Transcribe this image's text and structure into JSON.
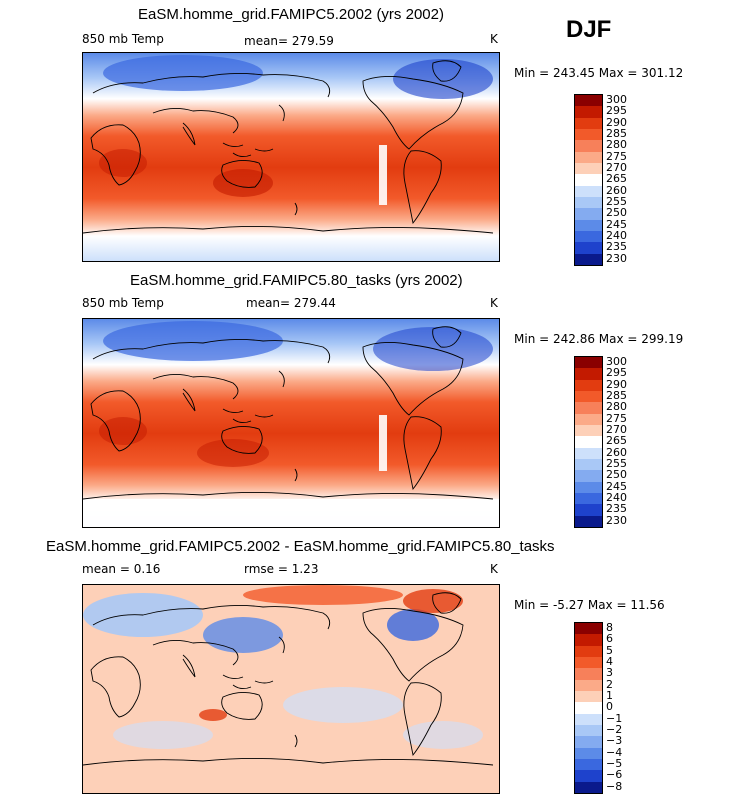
{
  "season": "DJF",
  "panels": [
    {
      "title": "EaSM.homme_grid.FAMIPC5.2002 (yrs 2002)",
      "variable": "850 mb Temp",
      "mean_text": "mean=  279.59",
      "unit": "K",
      "minmax": "Min = 243.45  Max = 301.12",
      "colorbar": {
        "labels": [
          "300",
          "295",
          "290",
          "285",
          "280",
          "275",
          "270",
          "265",
          "260",
          "255",
          "250",
          "245",
          "240",
          "235",
          "230"
        ],
        "colors": [
          "#8a0000",
          "#c31a00",
          "#e23c10",
          "#f25a2a",
          "#f7805a",
          "#fbaa88",
          "#fdd0b8",
          "#ffffff",
          "#cde0fb",
          "#a9c8f6",
          "#84abf0",
          "#5c8be8",
          "#3a68df",
          "#1e42cc",
          "#0a1a8c"
        ]
      }
    },
    {
      "title": "EaSM.homme_grid.FAMIPC5.80_tasks (yrs 2002)",
      "variable": "850 mb Temp",
      "mean_text": "mean=  279.44",
      "unit": "K",
      "minmax": "Min = 242.86  Max = 299.19",
      "colorbar": {
        "labels": [
          "300",
          "295",
          "290",
          "285",
          "280",
          "275",
          "270",
          "265",
          "260",
          "255",
          "250",
          "245",
          "240",
          "235",
          "230"
        ],
        "colors": [
          "#8a0000",
          "#c31a00",
          "#e23c10",
          "#f25a2a",
          "#f7805a",
          "#fbaa88",
          "#fdd0b8",
          "#ffffff",
          "#cde0fb",
          "#a9c8f6",
          "#84abf0",
          "#5c8be8",
          "#3a68df",
          "#1e42cc",
          "#0a1a8c"
        ]
      }
    },
    {
      "title": "EaSM.homme_grid.FAMIPC5.2002 - EaSM.homme_grid.FAMIPC5.80_tasks",
      "mean_text": "mean =    0.16",
      "rmse_text": "rmse =    1.23",
      "unit": "K",
      "minmax": "Min =   -5.27  Max =   11.56",
      "colorbar": {
        "labels": [
          "8",
          "6",
          "5",
          "4",
          "3",
          "2",
          "1",
          "0",
          "−1",
          "−2",
          "−3",
          "−4",
          "−5",
          "−6",
          "−8"
        ],
        "colors": [
          "#8a0000",
          "#c31a00",
          "#e23c10",
          "#f25a2a",
          "#f7805a",
          "#fbaa88",
          "#fdd0b8",
          "#ffffff",
          "#cde0fb",
          "#a9c8f6",
          "#84abf0",
          "#5c8be8",
          "#3a68df",
          "#1e42cc",
          "#0a1a8c"
        ]
      }
    }
  ]
}
